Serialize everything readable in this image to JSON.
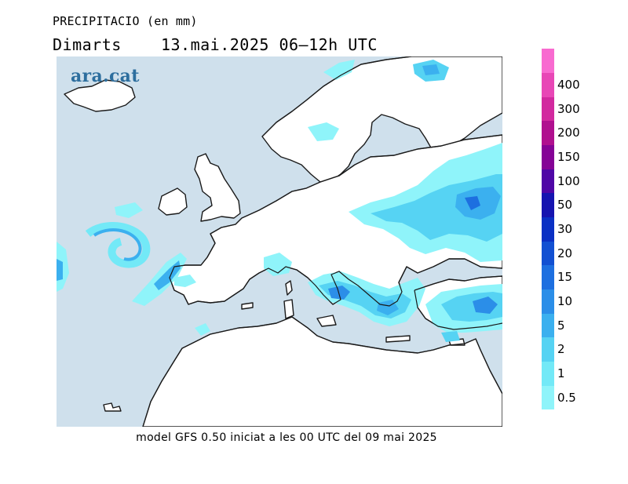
{
  "header": {
    "title": "PRECIPITACIO (en mm)",
    "subtitle": "Dimarts    13.mai.2025 06–12h UTC"
  },
  "map": {
    "logo_text": "ara.cat",
    "colors": {
      "sea": "#cfe0ec",
      "land": "#ffffff",
      "coast": "#1a1a1a"
    }
  },
  "footer": {
    "text": "model GFS 0.50 iniciat a les 00 UTC del 09 mai 2025"
  },
  "legend": {
    "unit": "mm",
    "levels": [
      {
        "label": "0.5",
        "color": "#8ff4fa"
      },
      {
        "label": "1",
        "color": "#73e9f7"
      },
      {
        "label": "2",
        "color": "#56d3f3"
      },
      {
        "label": "5",
        "color": "#3bb0ef"
      },
      {
        "label": "10",
        "color": "#2b8ee8"
      },
      {
        "label": "15",
        "color": "#1d6fe0"
      },
      {
        "label": "20",
        "color": "#1250d2"
      },
      {
        "label": "30",
        "color": "#0a30c4"
      },
      {
        "label": "50",
        "color": "#1614b0"
      },
      {
        "label": "100",
        "color": "#4f06a6"
      },
      {
        "label": "150",
        "color": "#850396"
      },
      {
        "label": "200",
        "color": "#b0108f"
      },
      {
        "label": "300",
        "color": "#d2299f"
      },
      {
        "label": "400",
        "color": "#e847b6"
      },
      {
        "label": "",
        "color": "#f86ad0"
      }
    ]
  }
}
